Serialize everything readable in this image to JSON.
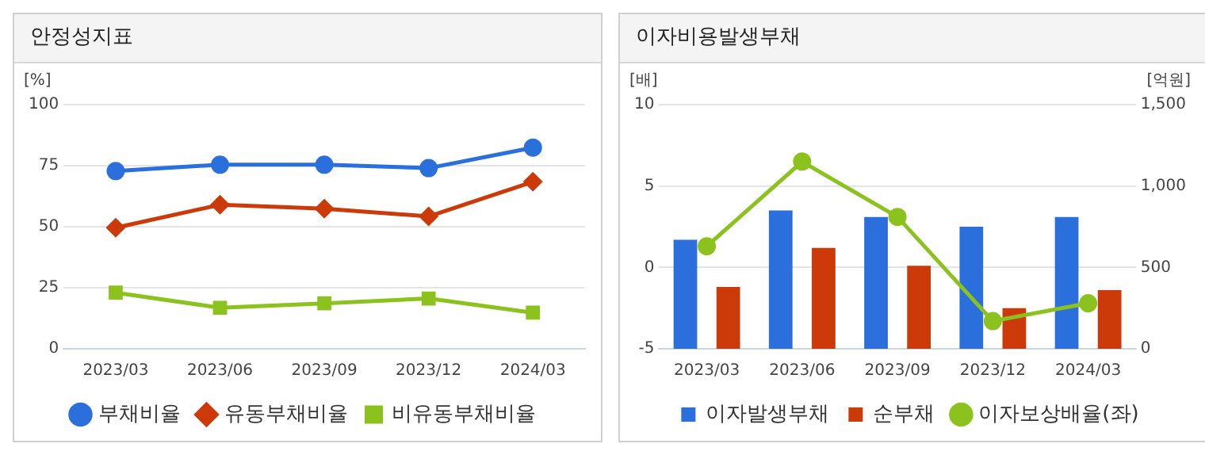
{
  "chart_data": [
    {
      "type": "line",
      "title": "안정성지표",
      "ylabel": "[%]",
      "categories": [
        "2023/03",
        "2023/06",
        "2023/09",
        "2023/12",
        "2024/03"
      ],
      "ylim": [
        0,
        100
      ],
      "yticks": [
        0,
        25,
        50,
        75,
        100
      ],
      "grid": "y",
      "legend": "bottom",
      "series": [
        {
          "name": "부채비율",
          "color": "#2a6fdb",
          "marker": "circle",
          "values": [
            72.8,
            75.4,
            75.4,
            74,
            82.4
          ]
        },
        {
          "name": "유동부채비율",
          "color": "#cc3a0a",
          "marker": "diamond",
          "values": [
            49.6,
            59,
            57.4,
            54.2,
            68.4
          ]
        },
        {
          "name": "비유동부채비율",
          "color": "#8cc21e",
          "marker": "square",
          "values": [
            23,
            16.8,
            18.6,
            20.6,
            14.8
          ]
        }
      ]
    },
    {
      "type": "bar",
      "title": "이자비용발생부채",
      "ylabel": "[배]",
      "y2label": "[억원]",
      "categories": [
        "2023/03",
        "2023/06",
        "2023/09",
        "2023/12",
        "2024/03"
      ],
      "ylim": [
        -5,
        10
      ],
      "yticks": [
        -5,
        0,
        5,
        10
      ],
      "y2lim": [
        0,
        1500
      ],
      "y2ticks": [
        0,
        500,
        {
          "value": 1000,
          "label": "1,000"
        },
        {
          "value": 1500,
          "label": "1,500"
        }
      ],
      "grid": "y",
      "legend": "bottom",
      "series": [
        {
          "name": "이자발생부채",
          "color": "#2a6fdb",
          "axis": "y2",
          "values": [
            670,
            850,
            810,
            750,
            810
          ]
        },
        {
          "name": "순부채",
          "color": "#cc3a0a",
          "axis": "y2",
          "values": [
            380,
            620,
            510,
            250,
            360
          ]
        },
        {
          "name": "이자보상배율(좌)",
          "type": "line",
          "color": "#8cc21e",
          "marker": "circle",
          "axis": "y",
          "values": [
            1.3,
            6.5,
            3.1,
            -3.3,
            -2.2
          ]
        }
      ]
    }
  ]
}
